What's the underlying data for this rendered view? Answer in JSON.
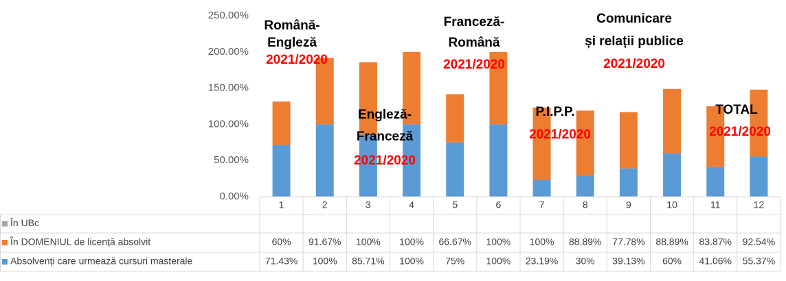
{
  "chart_data": {
    "type": "stacked_bar",
    "categories": [
      "1",
      "2",
      "3",
      "4",
      "5",
      "6",
      "7",
      "8",
      "9",
      "10",
      "11",
      "12"
    ],
    "series": [
      {
        "name": "În UBc",
        "color": "#a5a5a5",
        "values": [
          null,
          null,
          null,
          null,
          null,
          null,
          null,
          null,
          null,
          null,
          null,
          null
        ]
      },
      {
        "name": "În DOMENIUL de licență absolvit",
        "color": "#ed7d31",
        "values": [
          60,
          91.67,
          100,
          100,
          66.67,
          100,
          100,
          88.89,
          77.78,
          88.89,
          83.87,
          92.54
        ],
        "value_labels": [
          "60%",
          "91.67%",
          "100%",
          "100%",
          "66.67%",
          "100%",
          "100%",
          "88.89%",
          "77.78%",
          "88.89%",
          "83.87%",
          "92.54%"
        ]
      },
      {
        "name": "Absolvenți care urmează cursuri masterale",
        "color": "#5b9bd5",
        "values": [
          71.43,
          100,
          85.71,
          100,
          75,
          100,
          23.19,
          30,
          39.13,
          60,
          41.06,
          55.37
        ],
        "value_labels": [
          "71.43%",
          "100%",
          "85.71%",
          "100%",
          "75%",
          "100%",
          "23.19%",
          "30%",
          "39.13%",
          "60%",
          "41.06%",
          "55.37%"
        ]
      }
    ],
    "ylim": [
      0,
      250
    ],
    "yticks": [
      {
        "value": 0,
        "label": "0.00%"
      },
      {
        "value": 50,
        "label": "50.00%"
      },
      {
        "value": 100,
        "label": "100.00%"
      },
      {
        "value": 150,
        "label": "150.00%"
      },
      {
        "value": 200,
        "label": "200.00%"
      },
      {
        "value": 250,
        "label": "250.00%"
      }
    ],
    "annotations": [
      {
        "lines": [
          "Română-",
          "Engleză"
        ],
        "period": "2021/2020"
      },
      {
        "lines": [
          "Engleză-",
          "Franceză"
        ],
        "period": "2021/2020"
      },
      {
        "lines": [
          "Franceză-",
          "Română"
        ],
        "period": "2021/2020"
      },
      {
        "lines": [
          "P.I.P.P."
        ],
        "period": "2021/2020"
      },
      {
        "lines": [
          "Comunicare",
          "și relații publice"
        ],
        "period": "2021/2020"
      },
      {
        "lines": [
          "TOTAL"
        ],
        "period": "2021/2020"
      }
    ]
  }
}
